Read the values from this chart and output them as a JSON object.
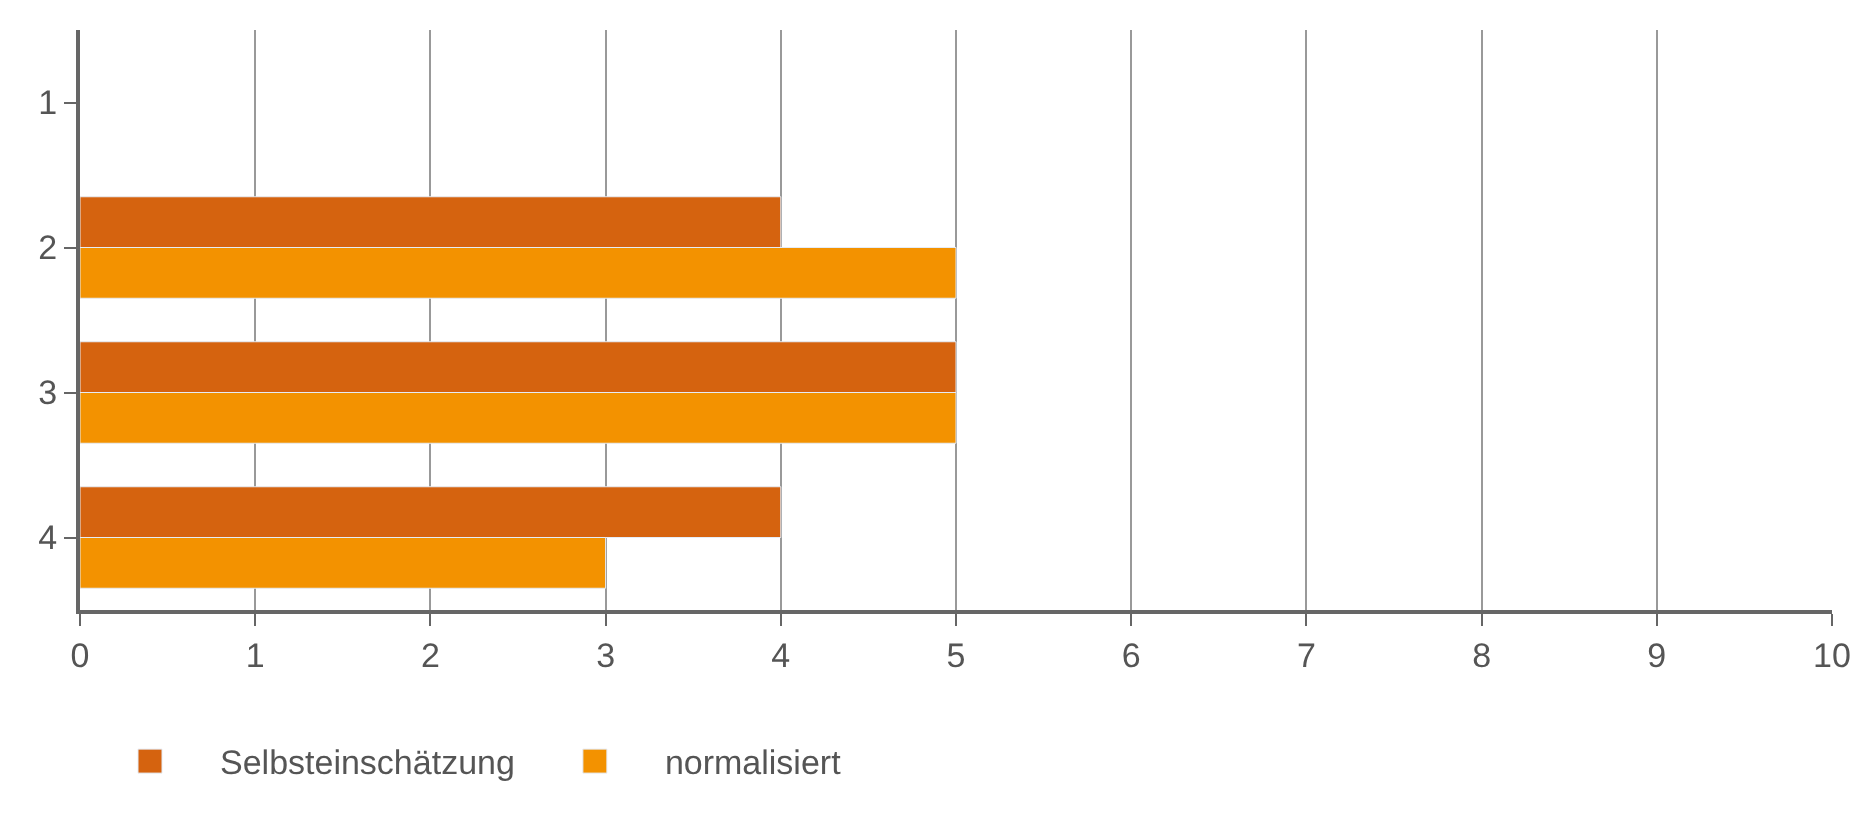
{
  "chart_data": {
    "type": "bar",
    "orientation": "horizontal",
    "categories": [
      "1",
      "2",
      "3",
      "4"
    ],
    "series": [
      {
        "name": "Selbsteinschätzung",
        "color": "#d5630f",
        "values": [
          null,
          4,
          5,
          4
        ]
      },
      {
        "name": "normalisiert",
        "color": "#f39200",
        "values": [
          null,
          5,
          5,
          3
        ]
      }
    ],
    "xlim": [
      0,
      10
    ],
    "xticks": [
      0,
      1,
      2,
      3,
      4,
      5,
      6,
      7,
      8,
      9,
      10
    ],
    "grid": "x",
    "legend": "bottom left"
  }
}
